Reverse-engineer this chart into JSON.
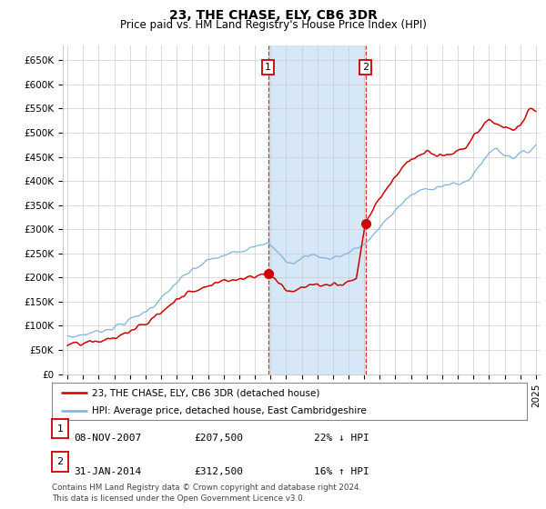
{
  "title": "23, THE CHASE, ELY, CB6 3DR",
  "subtitle": "Price paid vs. HM Land Registry's House Price Index (HPI)",
  "ylim": [
    0,
    680000
  ],
  "yticks": [
    0,
    50000,
    100000,
    150000,
    200000,
    250000,
    300000,
    350000,
    400000,
    450000,
    500000,
    550000,
    600000,
    650000
  ],
  "ytick_labels": [
    "£0",
    "£50K",
    "£100K",
    "£150K",
    "£200K",
    "£250K",
    "£300K",
    "£350K",
    "£400K",
    "£450K",
    "£500K",
    "£550K",
    "£600K",
    "£650K"
  ],
  "hpi_color": "#7eb3e0",
  "price_color": "#cc0000",
  "marker_color": "#cc0000",
  "sale1_x": 2007.85,
  "sale1_y": 207500,
  "sale1_label": "1",
  "sale2_x": 2014.08,
  "sale2_y": 312500,
  "sale2_label": "2",
  "vline1_x": 2007.85,
  "vline2_x": 2014.08,
  "shade_color": "#d6e8f7",
  "legend1": "23, THE CHASE, ELY, CB6 3DR (detached house)",
  "legend2": "HPI: Average price, detached house, East Cambridgeshire",
  "table_row1": [
    "1",
    "08-NOV-2007",
    "£207,500",
    "22% ↓ HPI"
  ],
  "table_row2": [
    "2",
    "31-JAN-2014",
    "£312,500",
    "16% ↑ HPI"
  ],
  "footnote": "Contains HM Land Registry data © Crown copyright and database right 2024.\nThis data is licensed under the Open Government Licence v3.0.",
  "background_color": "#ffffff",
  "grid_color": "#cccccc",
  "title_fontsize": 10,
  "subtitle_fontsize": 8.5,
  "tick_fontsize": 7.5,
  "xlim": [
    1994.7,
    2025.3
  ],
  "xticks": [
    1995,
    1996,
    1997,
    1998,
    1999,
    2000,
    2001,
    2002,
    2003,
    2004,
    2005,
    2006,
    2007,
    2008,
    2009,
    2010,
    2011,
    2012,
    2013,
    2014,
    2015,
    2016,
    2017,
    2018,
    2019,
    2020,
    2021,
    2022,
    2023,
    2024,
    2025
  ]
}
